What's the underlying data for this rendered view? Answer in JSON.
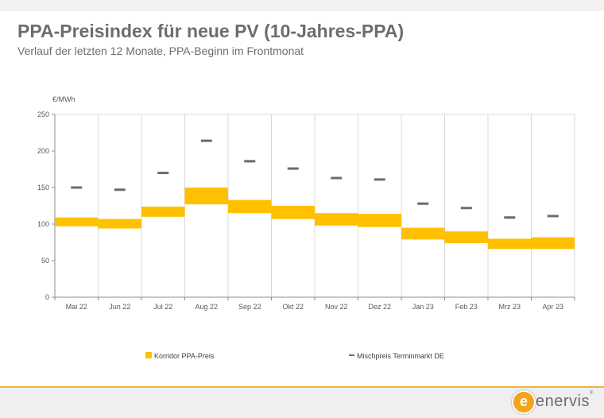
{
  "title": "PPA-Preisindex für neue PV (10-Jahres-PPA)",
  "subtitle": "Verlauf der letzten 12 Monate, PPA-Beginn im Frontmonat",
  "colors": {
    "corridor": "#ffc000",
    "mix": "#6b6b6b",
    "grid": "#d9d9d9",
    "accent": "#f3b23a"
  },
  "logo": {
    "text": "enervis",
    "letter": "e",
    "mark": "®"
  },
  "chart_data": {
    "type": "bar",
    "ylabel": "€/MWh",
    "ylim": [
      0,
      250
    ],
    "yticks": [
      0,
      50,
      100,
      150,
      200,
      250
    ],
    "categories": [
      "Mai 22",
      "Jun 22",
      "Jul 22",
      "Aug 22",
      "Sep 22",
      "Okt 22",
      "Nov 22",
      "Dez 22",
      "Jan 23",
      "Feb 23",
      "Mrz 23",
      "Apr 23"
    ],
    "series": [
      {
        "name": "Korridor PPA-Preis",
        "kind": "floating-bar",
        "low": [
          97,
          94,
          110,
          127,
          115,
          107,
          98,
          96,
          79,
          74,
          66,
          66
        ],
        "high": [
          109,
          107,
          124,
          150,
          133,
          125,
          115,
          114,
          95,
          90,
          80,
          82
        ]
      },
      {
        "name": "Mischpreis Terminmarkt DE",
        "kind": "marker",
        "values": [
          150,
          147,
          170,
          214,
          186,
          176,
          163,
          161,
          128,
          122,
          109,
          111
        ]
      }
    ],
    "legend_position": "bottom",
    "grid": "vertical"
  }
}
